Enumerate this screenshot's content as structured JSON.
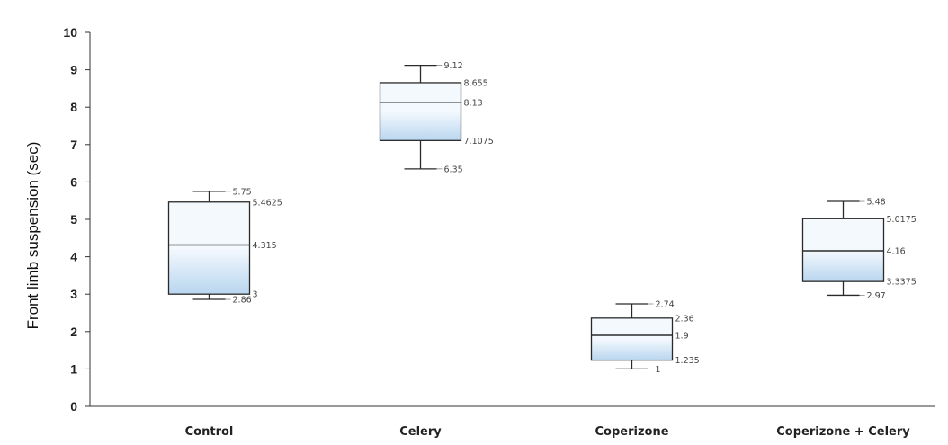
{
  "chart_data": {
    "type": "boxplot",
    "ylabel": "Front limb suspension  (sec)",
    "xlabel": "",
    "ylim": [
      0,
      10
    ],
    "yticks": [
      "0",
      "1",
      "2",
      "3",
      "4",
      "5",
      "6",
      "7",
      "8",
      "9",
      "10"
    ],
    "grid": false,
    "box_fill": [
      "#f4f9fe",
      "#b9d6ef"
    ],
    "box_stroke": "#2a2a2a",
    "categories": [
      "Control",
      "Celery",
      "Coperizone",
      "Coperizone + Celery"
    ],
    "series": [
      {
        "category": "Control",
        "min": 2.86,
        "q1": 3,
        "median": 4.315,
        "q3": 5.4625,
        "max": 5.75,
        "labels": {
          "min": "2.86",
          "q1": "3",
          "median": "4.315",
          "q3": "5.4625",
          "max": "5.75"
        }
      },
      {
        "category": "Celery",
        "min": 6.35,
        "q1": 7.1075,
        "median": 8.13,
        "q3": 8.655,
        "max": 9.12,
        "labels": {
          "min": "6.35",
          "q1": "7.1075",
          "median": "8.13",
          "q3": "8.655",
          "max": "9.12"
        }
      },
      {
        "category": "Coperizone",
        "min": 1,
        "q1": 1.235,
        "median": 1.9,
        "q3": 2.36,
        "max": 2.74,
        "labels": {
          "min": "1",
          "q1": "1.235",
          "median": "1.9",
          "q3": "2.36",
          "max": "2.74"
        }
      },
      {
        "category": "Coperizone + Celery",
        "min": 2.97,
        "q1": 3.3375,
        "median": 4.16,
        "q3": 5.0175,
        "max": 5.48,
        "labels": {
          "min": "2.97",
          "q1": "3.3375",
          "median": "4.16",
          "q3": "5.0175",
          "max": "5.48"
        }
      }
    ]
  }
}
